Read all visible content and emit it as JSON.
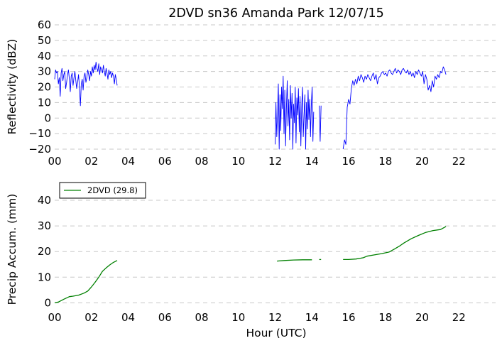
{
  "chart_data": [
    {
      "type": "line",
      "title": "2DVD sn36 Amanda Park 12/07/15",
      "xlabel": "",
      "ylabel": "Reflectivity (dBZ)",
      "xlim": [
        0,
        24
      ],
      "ylim": [
        -20,
        60
      ],
      "xticks": [
        0,
        2,
        4,
        6,
        8,
        10,
        12,
        14,
        16,
        18,
        20,
        22
      ],
      "xtick_labels": [
        "00",
        "02",
        "04",
        "06",
        "08",
        "10",
        "12",
        "14",
        "16",
        "18",
        "20",
        "22"
      ],
      "yticks": [
        -20,
        -10,
        0,
        10,
        20,
        30,
        40,
        50,
        60
      ],
      "ytick_labels": [
        "−20",
        "−10",
        "0",
        "10",
        "20",
        "30",
        "40",
        "50",
        "60"
      ],
      "grid": "horizontal dashed",
      "color": "#0000ff",
      "segments": [
        {
          "start": 0.0,
          "end": 3.4,
          "values": [
            25,
            31,
            29,
            30,
            22,
            26,
            14,
            29,
            32,
            24,
            28,
            30,
            19,
            23,
            28,
            31,
            25,
            17,
            27,
            29,
            21,
            26,
            30,
            24,
            19,
            23,
            28,
            20,
            8,
            22,
            25,
            18,
            27,
            29,
            23,
            26,
            31,
            28,
            24,
            30,
            27,
            33,
            29,
            34,
            31,
            36,
            32,
            30,
            35,
            28,
            33,
            31,
            29,
            34,
            30,
            27,
            32,
            29,
            25,
            31,
            28,
            30,
            26,
            29,
            27,
            22,
            28,
            25,
            21
          ]
        },
        {
          "start": 12.0,
          "end": 14.1,
          "values": [
            -17,
            10,
            -12,
            4,
            22,
            -20,
            15,
            -8,
            20,
            6,
            27,
            -10,
            18,
            -18,
            5,
            24,
            -5,
            12,
            -14,
            21,
            0,
            16,
            -20,
            9,
            -3,
            20,
            -16,
            13,
            2,
            19,
            -9,
            14,
            -18,
            7,
            20,
            -12,
            3,
            15,
            -20,
            10,
            -7,
            18,
            -1,
            12,
            -12,
            8,
            20,
            -15,
            4
          ]
        },
        {
          "start": 14.4,
          "end": 14.5,
          "values": [
            8,
            -15,
            8
          ]
        },
        {
          "start": 15.7,
          "end": 21.3,
          "values": [
            -20,
            -14,
            -17,
            7,
            12,
            9,
            19,
            24,
            21,
            25,
            22,
            27,
            24,
            28,
            26,
            23,
            27,
            25,
            28,
            26,
            24,
            27,
            29,
            25,
            28,
            22,
            26,
            27,
            29,
            30,
            28,
            29,
            27,
            30,
            31,
            29,
            28,
            30,
            32,
            29,
            31,
            30,
            28,
            31,
            32,
            30,
            29,
            31,
            28,
            30,
            27,
            29,
            26,
            30,
            28,
            31,
            29,
            27,
            30,
            22,
            28,
            25,
            18,
            21,
            17,
            24,
            20,
            27,
            25,
            28,
            26,
            30,
            29,
            33,
            31,
            28
          ]
        }
      ]
    },
    {
      "type": "line",
      "title": "",
      "xlabel": "Hour (UTC)",
      "ylabel": "Precip Accum. (mm)",
      "xlim": [
        0,
        24
      ],
      "ylim": [
        -1,
        45
      ],
      "xticks": [
        0,
        2,
        4,
        6,
        8,
        10,
        12,
        14,
        16,
        18,
        20,
        22
      ],
      "xtick_labels": [
        "00",
        "02",
        "04",
        "06",
        "08",
        "10",
        "12",
        "14",
        "16",
        "18",
        "20",
        "22"
      ],
      "yticks": [
        0,
        10,
        20,
        30,
        40
      ],
      "ytick_labels": [
        "0",
        "10",
        "20",
        "30",
        "40"
      ],
      "grid": "horizontal dashed",
      "legend": {
        "placement": "top-left",
        "entries": [
          {
            "name": "2DVD (29.8)",
            "color": "#008000"
          }
        ]
      },
      "series": [
        {
          "name": "2DVD (29.8)",
          "color": "#008000",
          "segments": [
            {
              "x": [
                0,
                0.2,
                0.5,
                0.8,
                1.0,
                1.3,
                1.6,
                1.8,
                2.0,
                2.2,
                2.4,
                2.6,
                2.8,
                3.0,
                3.2,
                3.4
              ],
              "y": [
                0,
                0.3,
                1.4,
                2.4,
                2.6,
                3.0,
                3.8,
                4.6,
                6.2,
                8.0,
                10.0,
                12.3,
                13.6,
                14.8,
                15.8,
                16.5
              ]
            },
            {
              "x": [
                12.1,
                12.5,
                13.0,
                13.5,
                14.0
              ],
              "y": [
                16.3,
                16.5,
                16.7,
                16.8,
                16.8
              ]
            },
            {
              "x": [
                14.4,
                14.5
              ],
              "y": [
                16.9,
                16.9
              ]
            },
            {
              "x": [
                15.7,
                16.0,
                16.4,
                16.8,
                17.0,
                17.4,
                17.8,
                18.2,
                18.5,
                18.8,
                19.0,
                19.4,
                19.8,
                20.2,
                20.6,
                21.0,
                21.3
              ],
              "y": [
                16.9,
                16.9,
                17.1,
                17.6,
                18.2,
                18.7,
                19.2,
                19.8,
                21.0,
                22.3,
                23.3,
                25.0,
                26.3,
                27.5,
                28.2,
                28.6,
                29.8
              ]
            }
          ]
        }
      ]
    }
  ]
}
